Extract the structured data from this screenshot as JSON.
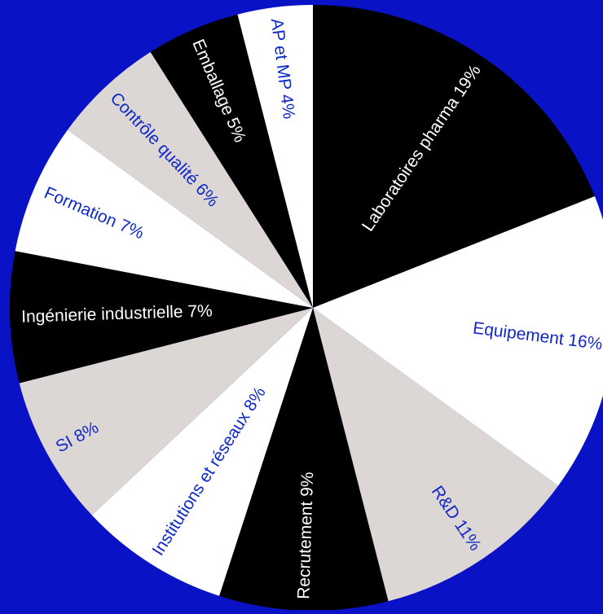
{
  "colors": {
    "background": "#0a12c6",
    "black": "#000000",
    "white": "#ffffff",
    "grey": "#dcd6d4",
    "blue_text": "#1028c8"
  },
  "chart_data": {
    "type": "pie",
    "title": "",
    "start_angle_deg": 0,
    "direction": "clockwise",
    "slices": [
      {
        "label": "Laboratoires pharma",
        "display": "Laboratoires pharma 19%",
        "value": 19,
        "fill": "black",
        "text_color": "white"
      },
      {
        "label": "Equipement",
        "display": "Equipement 16%",
        "value": 16,
        "fill": "white",
        "text_color": "blue_text"
      },
      {
        "label": "R&D",
        "display": "R&D 11%",
        "value": 11,
        "fill": "grey",
        "text_color": "blue_text"
      },
      {
        "label": "Recrutement",
        "display": "Recrutement 9%",
        "value": 9,
        "fill": "black",
        "text_color": "white"
      },
      {
        "label": "Institutions et réseaux",
        "display": "Institutions et réseaux 8%",
        "value": 8,
        "fill": "white",
        "text_color": "blue_text"
      },
      {
        "label": "SI",
        "display": "SI 8%",
        "value": 8,
        "fill": "grey",
        "text_color": "blue_text"
      },
      {
        "label": "Ingénierie industrielle",
        "display": "Ingénierie industrielle 7%",
        "value": 7,
        "fill": "black",
        "text_color": "white"
      },
      {
        "label": "Formation",
        "display": "Formation 7%",
        "value": 7,
        "fill": "white",
        "text_color": "blue_text"
      },
      {
        "label": "Contrôle qualité",
        "display": "Contrôle qualité 6%",
        "value": 6,
        "fill": "grey",
        "text_color": "blue_text"
      },
      {
        "label": "Emballage",
        "display": "Emballage 5%",
        "value": 5,
        "fill": "black",
        "text_color": "white"
      },
      {
        "label": "AP et MP",
        "display": "AP et MP 4%",
        "value": 4,
        "fill": "white",
        "text_color": "blue_text"
      }
    ]
  }
}
